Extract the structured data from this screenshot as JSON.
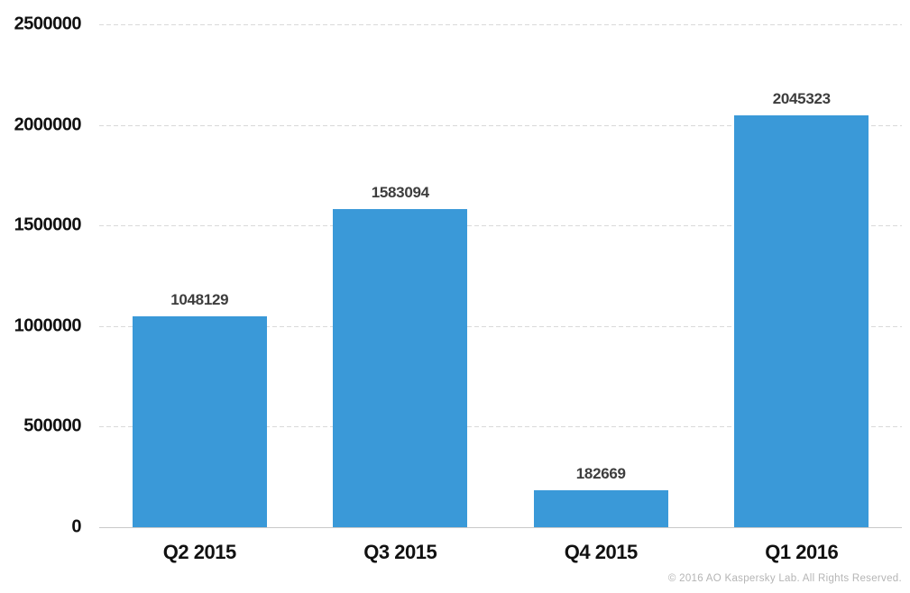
{
  "chart_data": {
    "type": "bar",
    "title": "",
    "xlabel": "",
    "ylabel": "",
    "categories": [
      "Q2 2015",
      "Q3 2015",
      "Q4 2015",
      "Q1 2016"
    ],
    "values": [
      1048129,
      1583094,
      182669,
      2045323
    ],
    "value_labels": [
      "1048129",
      "1583094",
      "182669",
      "2045323"
    ],
    "ylim": [
      0,
      2500000
    ],
    "yticks": [
      0,
      500000,
      1000000,
      1500000,
      2000000,
      2500000
    ],
    "ytick_labels": [
      "0",
      "500000",
      "1000000",
      "1500000",
      "2000000",
      "2500000"
    ],
    "grid": "horizontal-dashed",
    "legend_position": "none",
    "bar_color": "#3A99D8"
  },
  "colors": {
    "bar": "#3A99D8",
    "gridline": "#d9d9d9",
    "axis_line": "#c9c9c9",
    "tick_label": "#111111",
    "value_label": "#3d3d3d",
    "copyright": "#b5b5b5"
  },
  "footer": {
    "copyright": "© 2016 AO Kaspersky Lab. All Rights Reserved."
  }
}
